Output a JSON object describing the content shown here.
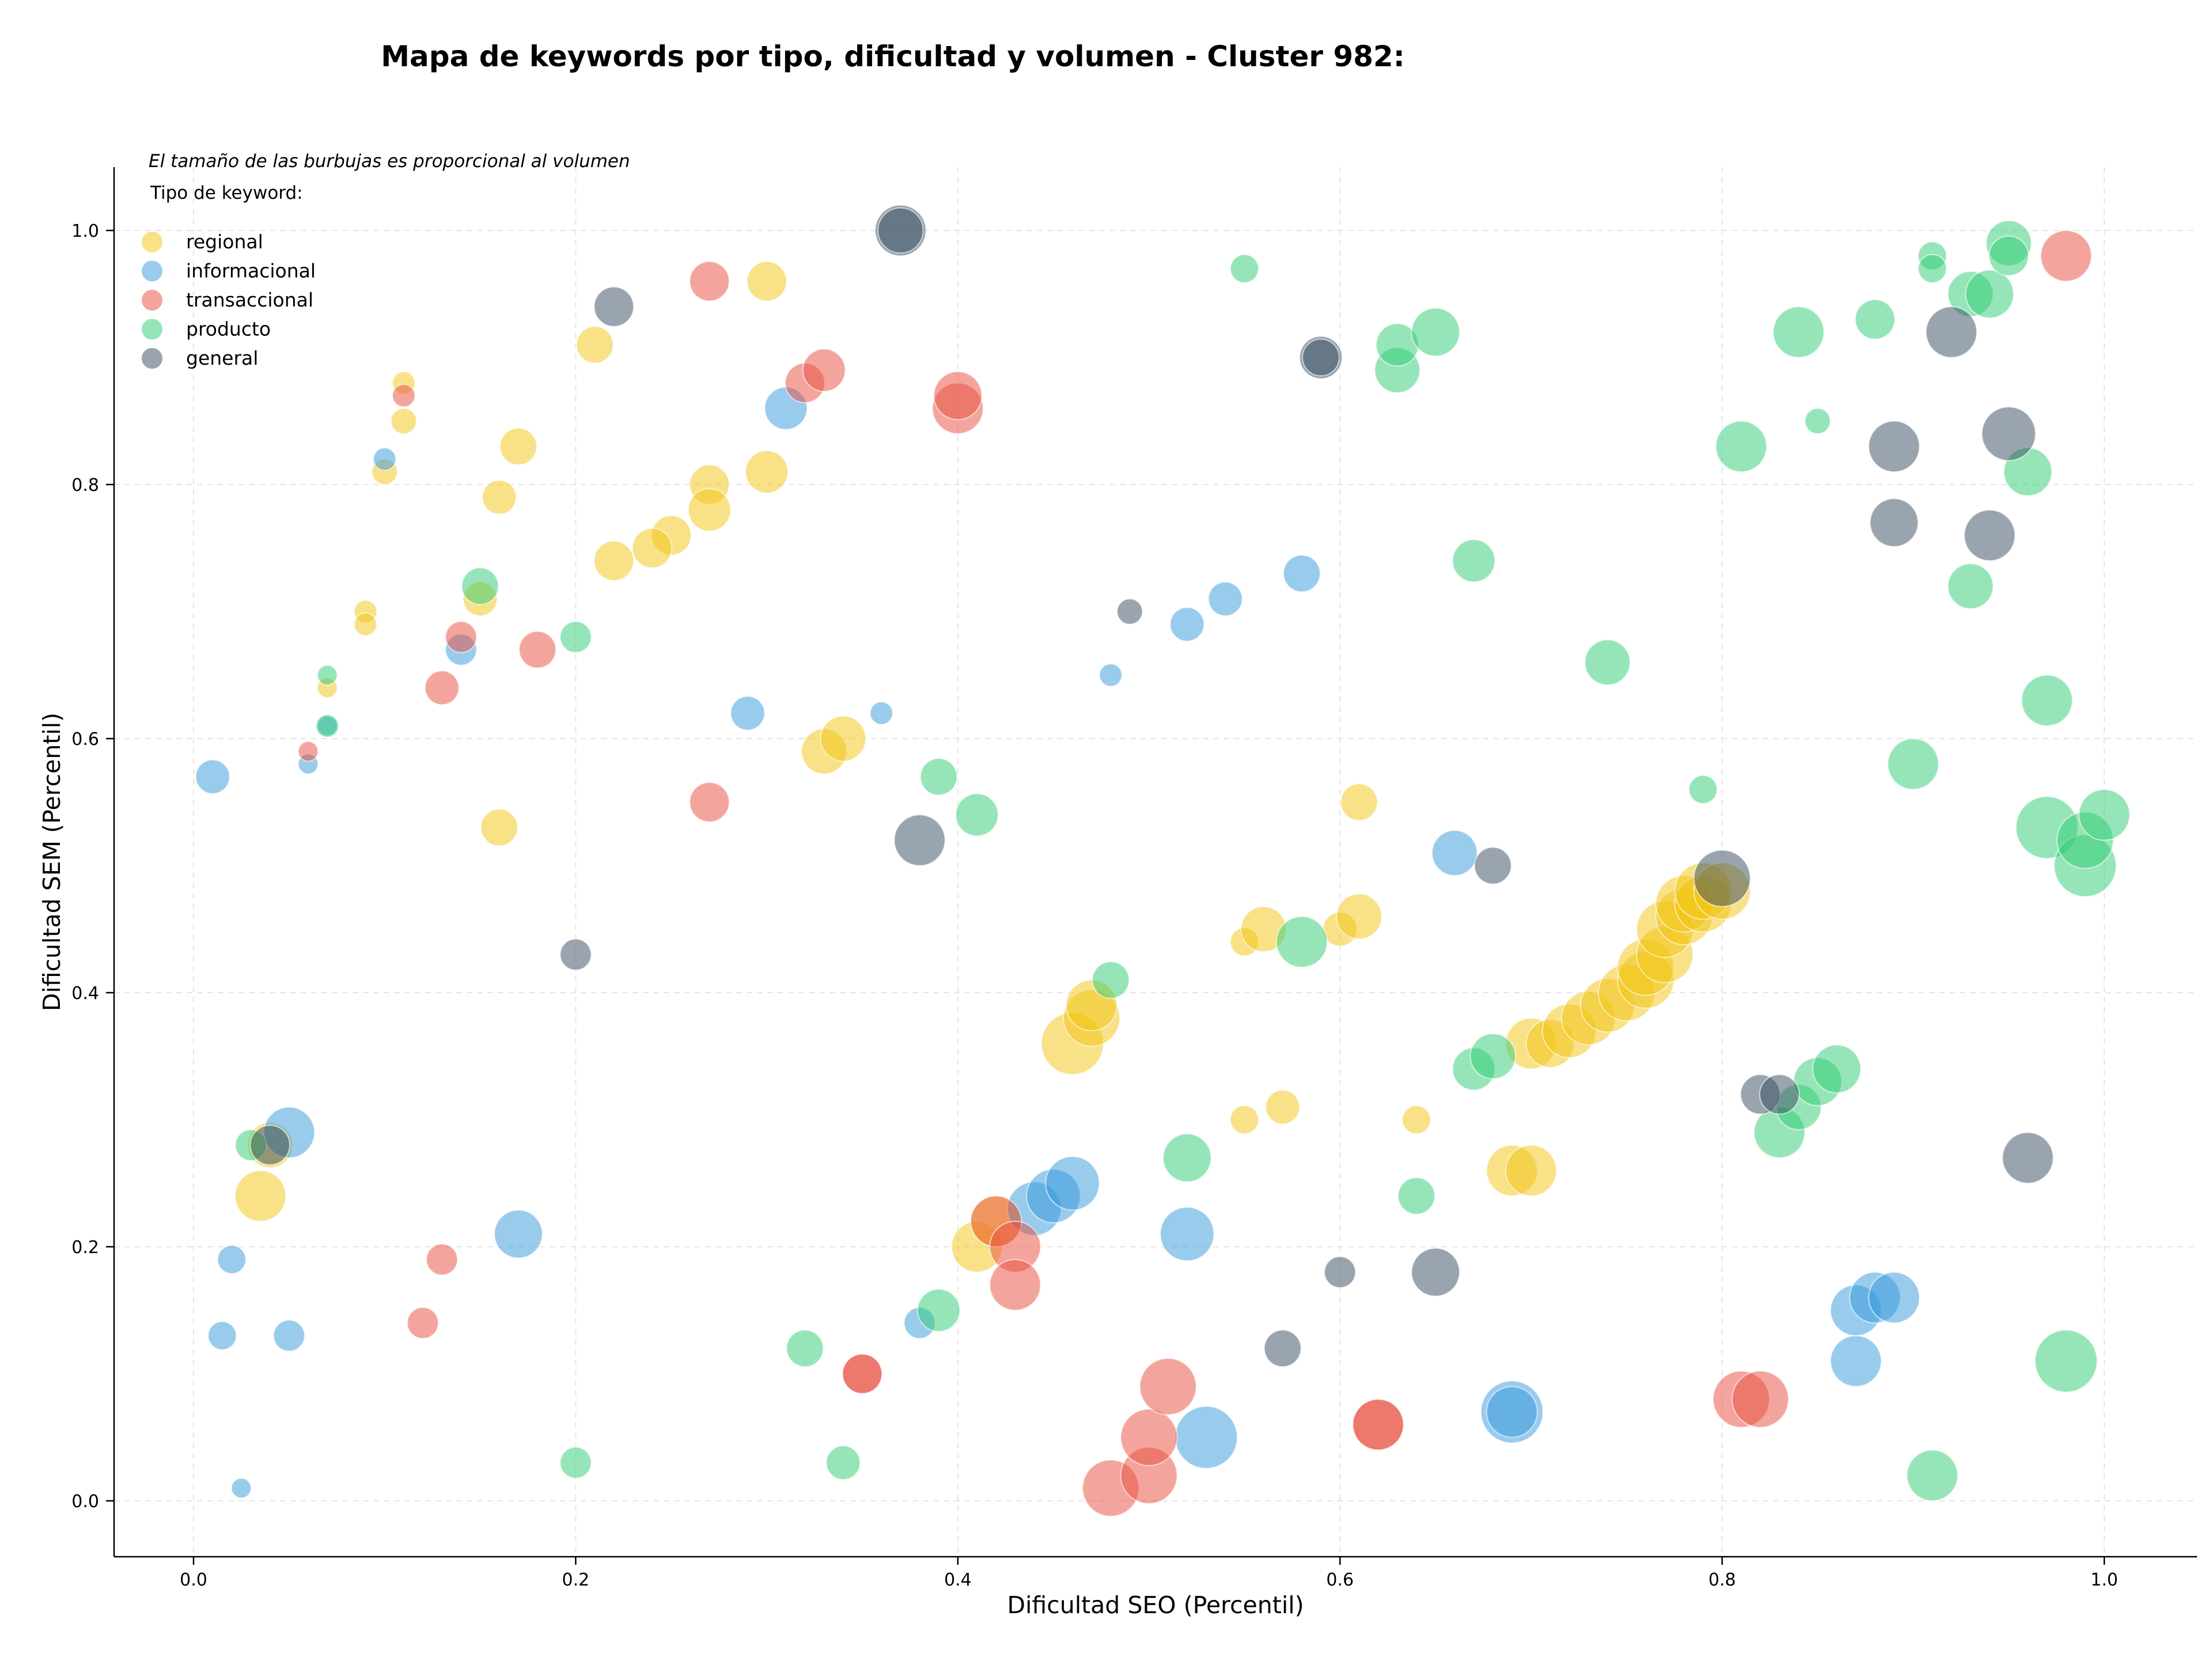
{
  "chart_data": {
    "type": "scatter",
    "title": "Mapa de keywords por tipo, dificultad y volumen - Cluster 982:",
    "subtitle": "El tamaño de las burbujas es proporcional al volumen",
    "xlabel": "Dificultad SEO (Percentil)",
    "ylabel": "Dificultad SEM (Percentil)",
    "xlim": [
      -0.04,
      1.05
    ],
    "ylim": [
      -0.04,
      1.05
    ],
    "xticks": [
      "0.0",
      "0.2",
      "0.4",
      "0.6",
      "0.8",
      "1.0"
    ],
    "yticks": [
      "0.0",
      "0.2",
      "0.4",
      "0.6",
      "0.8",
      "1.0"
    ],
    "grid": true,
    "legend": {
      "title": "Tipo de keyword:",
      "placement": "top-left"
    },
    "series": [
      {
        "name": "regional",
        "color": "#f1c40f",
        "points": [
          [
            0.11,
            0.88,
            8
          ],
          [
            0.11,
            0.85,
            9
          ],
          [
            0.1,
            0.81,
            9
          ],
          [
            0.09,
            0.7,
            8
          ],
          [
            0.09,
            0.69,
            8
          ],
          [
            0.07,
            0.64,
            7
          ],
          [
            0.16,
            0.79,
            12
          ],
          [
            0.17,
            0.83,
            13
          ],
          [
            0.16,
            0.53,
            13
          ],
          [
            0.15,
            0.71,
            12
          ],
          [
            0.21,
            0.91,
            13
          ],
          [
            0.3,
            0.96,
            14
          ],
          [
            0.3,
            0.81,
            15
          ],
          [
            0.27,
            0.8,
            14
          ],
          [
            0.27,
            0.78,
            15
          ],
          [
            0.25,
            0.76,
            14
          ],
          [
            0.24,
            0.75,
            14
          ],
          [
            0.22,
            0.74,
            14
          ],
          [
            0.33,
            0.59,
            16
          ],
          [
            0.34,
            0.6,
            16
          ],
          [
            0.035,
            0.24,
            18
          ],
          [
            0.04,
            0.28,
            16
          ],
          [
            0.41,
            0.2,
            18
          ],
          [
            0.42,
            0.22,
            18
          ],
          [
            0.46,
            0.36,
            22
          ],
          [
            0.47,
            0.38,
            20
          ],
          [
            0.47,
            0.39,
            18
          ],
          [
            0.55,
            0.3,
            10
          ],
          [
            0.55,
            0.44,
            10
          ],
          [
            0.56,
            0.45,
            16
          ],
          [
            0.57,
            0.31,
            12
          ],
          [
            0.6,
            0.45,
            12
          ],
          [
            0.61,
            0.46,
            16
          ],
          [
            0.61,
            0.55,
            13
          ],
          [
            0.64,
            0.3,
            10
          ],
          [
            0.69,
            0.26,
            18
          ],
          [
            0.7,
            0.26,
            18
          ],
          [
            0.7,
            0.36,
            18
          ],
          [
            0.71,
            0.36,
            17
          ],
          [
            0.72,
            0.37,
            19
          ],
          [
            0.73,
            0.38,
            19
          ],
          [
            0.74,
            0.39,
            19
          ],
          [
            0.75,
            0.4,
            20
          ],
          [
            0.76,
            0.41,
            20
          ],
          [
            0.76,
            0.42,
            20
          ],
          [
            0.77,
            0.43,
            20
          ],
          [
            0.77,
            0.45,
            20
          ],
          [
            0.78,
            0.46,
            20
          ],
          [
            0.78,
            0.47,
            20
          ],
          [
            0.79,
            0.47,
            20
          ],
          [
            0.79,
            0.48,
            20
          ],
          [
            0.8,
            0.48,
            20
          ]
        ]
      },
      {
        "name": "informacional",
        "color": "#3498db",
        "points": [
          [
            0.1,
            0.82,
            8
          ],
          [
            0.14,
            0.67,
            11
          ],
          [
            0.07,
            0.61,
            7
          ],
          [
            0.06,
            0.58,
            7
          ],
          [
            0.01,
            0.57,
            12
          ],
          [
            0.02,
            0.19,
            10
          ],
          [
            0.015,
            0.13,
            10
          ],
          [
            0.025,
            0.01,
            7
          ],
          [
            0.05,
            0.29,
            18
          ],
          [
            0.05,
            0.13,
            11
          ],
          [
            0.17,
            0.21,
            17
          ],
          [
            0.29,
            0.62,
            12
          ],
          [
            0.31,
            0.86,
            15
          ],
          [
            0.36,
            0.62,
            8
          ],
          [
            0.38,
            0.14,
            11
          ],
          [
            0.44,
            0.23,
            19
          ],
          [
            0.45,
            0.24,
            19
          ],
          [
            0.46,
            0.25,
            19
          ],
          [
            0.48,
            0.65,
            8
          ],
          [
            0.52,
            0.69,
            12
          ],
          [
            0.54,
            0.71,
            12
          ],
          [
            0.58,
            0.73,
            13
          ],
          [
            0.53,
            0.05,
            22
          ],
          [
            0.52,
            0.21,
            19
          ],
          [
            0.66,
            0.51,
            16
          ],
          [
            0.69,
            0.07,
            22
          ],
          [
            0.69,
            0.07,
            18
          ],
          [
            0.87,
            0.11,
            18
          ],
          [
            0.87,
            0.15,
            18
          ],
          [
            0.88,
            0.16,
            18
          ],
          [
            0.89,
            0.16,
            18
          ]
        ]
      },
      {
        "name": "transaccional",
        "color": "#e74c3c",
        "points": [
          [
            0.11,
            0.87,
            8
          ],
          [
            0.06,
            0.59,
            7
          ],
          [
            0.13,
            0.64,
            12
          ],
          [
            0.14,
            0.68,
            11
          ],
          [
            0.18,
            0.67,
            13
          ],
          [
            0.27,
            0.96,
            14
          ],
          [
            0.32,
            0.88,
            14
          ],
          [
            0.33,
            0.89,
            15
          ],
          [
            0.27,
            0.55,
            14
          ],
          [
            0.4,
            0.86,
            18
          ],
          [
            0.4,
            0.87,
            17
          ],
          [
            0.13,
            0.19,
            11
          ],
          [
            0.12,
            0.14,
            11
          ],
          [
            0.35,
            0.1,
            14
          ],
          [
            0.35,
            0.1,
            14
          ],
          [
            0.42,
            0.22,
            18
          ],
          [
            0.43,
            0.2,
            18
          ],
          [
            0.43,
            0.17,
            18
          ],
          [
            0.48,
            0.01,
            20
          ],
          [
            0.5,
            0.02,
            20
          ],
          [
            0.5,
            0.05,
            20
          ],
          [
            0.51,
            0.09,
            20
          ],
          [
            0.62,
            0.06,
            18
          ],
          [
            0.62,
            0.06,
            18
          ],
          [
            0.81,
            0.08,
            20
          ],
          [
            0.82,
            0.08,
            20
          ],
          [
            0.98,
            0.98,
            18
          ]
        ]
      },
      {
        "name": "producto",
        "color": "#2ecc71",
        "points": [
          [
            0.07,
            0.65,
            7
          ],
          [
            0.07,
            0.61,
            8
          ],
          [
            0.15,
            0.72,
            13
          ],
          [
            0.2,
            0.68,
            11
          ],
          [
            0.2,
            0.03,
            11
          ],
          [
            0.03,
            0.28,
            11
          ],
          [
            0.32,
            0.12,
            13
          ],
          [
            0.34,
            0.03,
            12
          ],
          [
            0.39,
            0.57,
            13
          ],
          [
            0.41,
            0.54,
            15
          ],
          [
            0.39,
            0.15,
            15
          ],
          [
            0.48,
            0.41,
            13
          ],
          [
            0.52,
            0.27,
            17
          ],
          [
            0.58,
            0.44,
            18
          ],
          [
            0.55,
            0.97,
            10
          ],
          [
            0.63,
            0.89,
            16
          ],
          [
            0.63,
            0.91,
            15
          ],
          [
            0.65,
            0.92,
            17
          ],
          [
            0.64,
            0.24,
            13
          ],
          [
            0.67,
            0.74,
            15
          ],
          [
            0.67,
            0.34,
            15
          ],
          [
            0.68,
            0.35,
            16
          ],
          [
            0.74,
            0.66,
            16
          ],
          [
            0.79,
            0.56,
            10
          ],
          [
            0.81,
            0.83,
            18
          ],
          [
            0.84,
            0.92,
            18
          ],
          [
            0.85,
            0.85,
            9
          ],
          [
            0.83,
            0.29,
            18
          ],
          [
            0.84,
            0.31,
            16
          ],
          [
            0.85,
            0.33,
            17
          ],
          [
            0.86,
            0.34,
            17
          ],
          [
            0.88,
            0.93,
            14
          ],
          [
            0.9,
            0.58,
            18
          ],
          [
            0.91,
            0.02,
            18
          ],
          [
            0.93,
            0.72,
            16
          ],
          [
            0.91,
            0.98,
            10
          ],
          [
            0.91,
            0.97,
            10
          ],
          [
            0.93,
            0.95,
            16
          ],
          [
            0.94,
            0.95,
            17
          ],
          [
            0.95,
            0.99,
            16
          ],
          [
            0.95,
            0.98,
            14
          ],
          [
            0.96,
            0.81,
            17
          ],
          [
            0.97,
            0.53,
            22
          ],
          [
            0.97,
            0.63,
            18
          ],
          [
            0.98,
            0.11,
            22
          ],
          [
            0.99,
            0.5,
            22
          ],
          [
            0.99,
            0.52,
            20
          ],
          [
            1.0,
            0.54,
            18
          ]
        ]
      },
      {
        "name": "general",
        "color": "#34495e",
        "points": [
          [
            0.22,
            0.94,
            14
          ],
          [
            0.37,
            1.0,
            18
          ],
          [
            0.37,
            1.0,
            16
          ],
          [
            0.38,
            0.52,
            18
          ],
          [
            0.2,
            0.43,
            11
          ],
          [
            0.04,
            0.28,
            14
          ],
          [
            0.49,
            0.7,
            9
          ],
          [
            0.57,
            0.12,
            13
          ],
          [
            0.6,
            0.18,
            11
          ],
          [
            0.59,
            0.9,
            15
          ],
          [
            0.59,
            0.9,
            13
          ],
          [
            0.65,
            0.18,
            17
          ],
          [
            0.68,
            0.5,
            13
          ],
          [
            0.8,
            0.49,
            20
          ],
          [
            0.82,
            0.32,
            14
          ],
          [
            0.83,
            0.32,
            14
          ],
          [
            0.89,
            0.77,
            17
          ],
          [
            0.89,
            0.83,
            18
          ],
          [
            0.92,
            0.92,
            18
          ],
          [
            0.94,
            0.76,
            18
          ],
          [
            0.95,
            0.84,
            19
          ],
          [
            0.96,
            0.27,
            18
          ]
        ]
      }
    ]
  }
}
